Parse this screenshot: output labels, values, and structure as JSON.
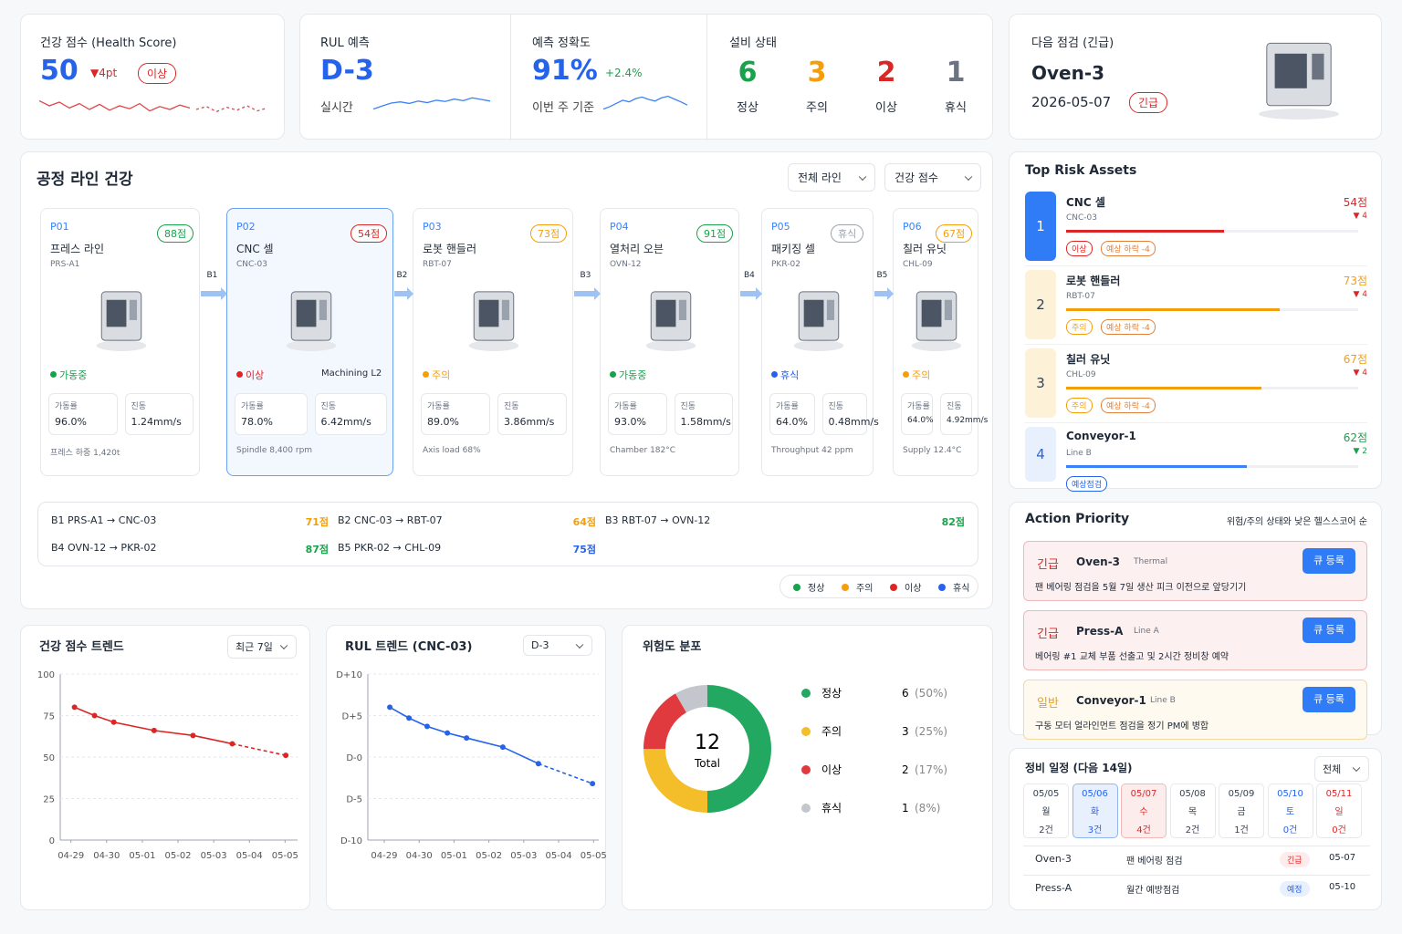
{
  "kpis": {
    "health": {
      "label": "건강 점수 (Health Score)",
      "value": 50,
      "delta": "▼4pt",
      "badge": "이상",
      "sparkline": [
        62,
        55,
        60,
        52,
        58,
        50,
        57,
        49,
        55,
        51,
        58,
        48,
        54,
        50,
        56,
        52
      ],
      "sparkline_forecast": [
        50,
        54,
        47,
        53,
        49,
        55,
        48,
        52
      ]
    },
    "rul": {
      "label": "RUL 예측",
      "value": "D-3",
      "sub": "실시간",
      "sparkline": [
        30,
        38,
        45,
        48,
        44,
        50,
        46,
        52,
        49,
        55,
        51,
        58,
        54,
        50
      ]
    },
    "accuracy": {
      "label": "예측 정확도",
      "value": "91%",
      "delta": "+2.4%",
      "sub": "이번 주 기준",
      "sparkline": [
        30,
        36,
        44,
        52,
        48,
        56,
        60,
        54,
        50,
        58,
        62,
        55,
        48,
        40
      ]
    },
    "status": {
      "label": "설비 상태",
      "items": [
        {
          "count": 6,
          "label": "정상",
          "color": "#16a34a"
        },
        {
          "count": 3,
          "label": "주의",
          "color": "#f59e0b"
        },
        {
          "count": 2,
          "label": "이상",
          "color": "#dc2626"
        },
        {
          "count": 1,
          "label": "휴식",
          "color": "#6b7280"
        }
      ]
    },
    "next": {
      "label": "다음 점검 (긴급)",
      "asset": "Oven-3",
      "date": "2026-05-07",
      "badge": "긴급"
    }
  },
  "process": {
    "title": "공정 라인 건강",
    "filters": [
      "전체 라인",
      "건강 점수"
    ],
    "stations": [
      {
        "id": "P01",
        "badge": "88점",
        "badge_color": "#16a34a",
        "name": "프레스 라인",
        "code": "PRS-A1",
        "status": "가동중",
        "status_color": "#16a34a",
        "metrics": [
          {
            "label": "가동률",
            "value": "96.0%"
          },
          {
            "label": "진동",
            "value": "1.24mm/s"
          }
        ],
        "note": "프레스 하중 1,420t"
      },
      {
        "id": "P02",
        "badge": "54점",
        "badge_color": "#dc2626",
        "name": "CNC 셀",
        "code": "CNC-03",
        "status": "이상",
        "status_color": "#dc2626",
        "extra": "Machining L2",
        "selected": true,
        "metrics": [
          {
            "label": "가동률",
            "value": "78.0%"
          },
          {
            "label": "진동",
            "value": "6.42mm/s"
          }
        ],
        "note": "Spindle 8,400 rpm"
      },
      {
        "id": "P03",
        "badge": "73점",
        "badge_color": "#f59e0b",
        "name": "로봇 핸들러",
        "code": "RBT-07",
        "status": "주의",
        "status_color": "#f59e0b",
        "metrics": [
          {
            "label": "가동률",
            "value": "89.0%"
          },
          {
            "label": "진동",
            "value": "3.86mm/s"
          }
        ],
        "note": "Axis load 68%"
      },
      {
        "id": "P04",
        "badge": "91점",
        "badge_color": "#16a34a",
        "name": "열처리 오븐",
        "code": "OVN-12",
        "status": "가동중",
        "status_color": "#16a34a",
        "metrics": [
          {
            "label": "가동률",
            "value": "93.0%"
          },
          {
            "label": "진동",
            "value": "1.58mm/s"
          }
        ],
        "note": "Chamber 182°C"
      },
      {
        "id": "P05",
        "badge": "휴식",
        "badge_color": "#9ca3af",
        "name": "패키징 셀",
        "code": "PKR-02",
        "status": "휴식",
        "status_color": "#2563eb",
        "metrics": [
          {
            "label": "가동률",
            "value": "64.0%"
          },
          {
            "label": "진동",
            "value": "0.48mm/s"
          }
        ],
        "note": "Throughput 42 ppm"
      },
      {
        "id": "P06",
        "badge": "67점",
        "badge_color": "#f59e0b",
        "name": "칠러 유닛",
        "code": "CHL-09",
        "status": "주의",
        "status_color": "#f59e0b",
        "metrics": [
          {
            "label": "가동률",
            "value": "64.0%"
          },
          {
            "label": "진동",
            "value": "4.92mm/s"
          }
        ],
        "note": "Supply 12.4°C"
      }
    ],
    "buffers": [
      "B1",
      "B2",
      "B3",
      "B4",
      "B5"
    ],
    "links": [
      {
        "label": "B1 PRS-A1 → CNC-03",
        "score": "71점",
        "color": "#f59e0b"
      },
      {
        "label": "B2 CNC-03 → RBT-07",
        "score": "64점",
        "color": "#f59e0b"
      },
      {
        "label": "B3 RBT-07 → OVN-12",
        "score": "82점",
        "color": "#16a34a"
      },
      {
        "label": "B4 OVN-12 → PKR-02",
        "score": "87점",
        "color": "#16a34a"
      },
      {
        "label": "B5 PKR-02 → CHL-09",
        "score": "75점",
        "color": "#2563eb"
      }
    ],
    "legend": [
      {
        "label": "정상",
        "color": "#16a34a"
      },
      {
        "label": "주의",
        "color": "#f59e0b"
      },
      {
        "label": "이상",
        "color": "#dc2626"
      },
      {
        "label": "휴식",
        "color": "#2563eb"
      }
    ]
  },
  "top_risk": {
    "title": "Top Risk Assets",
    "items": [
      {
        "rank": "1",
        "name": "CNC 셀",
        "code": "CNC-03",
        "score": 54,
        "score_label": "54점",
        "delta": "▼ 4",
        "color": "#dc2626",
        "tags": [
          "이상",
          "예상 하락 -4"
        ]
      },
      {
        "rank": "2",
        "name": "로봇 핸들러",
        "code": "RBT-07",
        "score": 73,
        "score_label": "73점",
        "delta": "▼ 4",
        "color": "#f59e0b",
        "tags": [
          "주의",
          "예상 하락 -4"
        ]
      },
      {
        "rank": "3",
        "name": "칠러 유닛",
        "code": "CHL-09",
        "score": 67,
        "score_label": "67점",
        "delta": "▼ 4",
        "color": "#f59e0b",
        "tags": [
          "주의",
          "예상 하락 -4"
        ]
      },
      {
        "rank": "4",
        "name": "Conveyor-1",
        "code": "Line B",
        "score": 62,
        "score_label": "62점",
        "delta": "▼ 2",
        "color": "#3b82f6",
        "tags": [
          "예상점검"
        ]
      }
    ]
  },
  "actions": {
    "title": "Action Priority",
    "subtitle": "위험/주의 상태와 낮은 헬스스코어 순",
    "items": [
      {
        "level": "긴급",
        "asset": "Oven-3",
        "tag": "Thermal",
        "text": "팬 베어링 점검을 5월 7일 생산 피크 이전으로 앞당기기",
        "button": "큐 등록",
        "color": "#dc2626"
      },
      {
        "level": "긴급",
        "asset": "Press-A",
        "tag": "Line A",
        "text": "베어링 #1 교체 부품 선출고 및 2시간 정비창 예약",
        "button": "큐 등록",
        "color": "#dc2626"
      },
      {
        "level": "일반",
        "asset": "Conveyor-1",
        "tag": "Line B",
        "text": "구동 모터 얼라인먼트 점검을 정기 PM에 병합",
        "button": "큐 등록",
        "color": "#f59e0b"
      }
    ]
  },
  "schedule": {
    "title": "정비 일정 (다음 14일)",
    "filter": "전체",
    "days": [
      {
        "date": "05/05",
        "dow": "월",
        "count": "2건"
      },
      {
        "date": "05/06",
        "dow": "화",
        "count": "3건",
        "selected": true
      },
      {
        "date": "05/07",
        "dow": "수",
        "count": "4건",
        "alert": true
      },
      {
        "date": "05/08",
        "dow": "목",
        "count": "2건"
      },
      {
        "date": "05/09",
        "dow": "금",
        "count": "1건"
      },
      {
        "date": "05/10",
        "dow": "토",
        "count": "0건",
        "color": "#2563eb"
      },
      {
        "date": "05/11",
        "dow": "일",
        "count": "0건",
        "color": "#dc2626"
      }
    ],
    "rows": [
      {
        "asset": "Oven-3",
        "task": "팬 베어링 점검",
        "badge": "긴급",
        "badge_color": "#dc2626",
        "date": "05-07"
      },
      {
        "asset": "Press-A",
        "task": "월간 예방점검",
        "badge": "예정",
        "badge_color": "#2563eb",
        "date": "05-10"
      }
    ]
  },
  "chart_data": [
    {
      "type": "line",
      "title": "건강 점수 트렌드",
      "filter": "최근 7일",
      "xlim": [
        -0.3,
        6.35
      ],
      "xticks": [
        {
          "value": 0,
          "label": "04-29"
        },
        {
          "value": 1,
          "label": "04-30"
        },
        {
          "value": 2,
          "label": "05-01"
        },
        {
          "value": 3,
          "label": "05-02"
        },
        {
          "value": 4,
          "label": "05-03"
        },
        {
          "value": 5,
          "label": "05-04"
        },
        {
          "value": 6,
          "label": "05-05"
        }
      ],
      "ylim": [
        0,
        100
      ],
      "yticks": [
        0,
        25,
        50,
        75,
        100
      ],
      "grid": true,
      "series": [
        {
          "color": "#dc2626",
          "x": [
            0.1,
            0.66,
            1.2,
            2.33,
            3.42,
            4.52
          ],
          "values": [
            80,
            75,
            71,
            66,
            63,
            58
          ]
        },
        {
          "color": "#dc2626",
          "dashed": true,
          "x": [
            4.52,
            6.02
          ],
          "values": [
            58,
            51
          ]
        }
      ]
    },
    {
      "type": "line",
      "title": "RUL 트렌드 (CNC-03)",
      "filter": "D-3",
      "xlim": [
        -0.47,
        6.15
      ],
      "xticks": [
        {
          "value": 0,
          "label": "04-29"
        },
        {
          "value": 1,
          "label": "04-30"
        },
        {
          "value": 2,
          "label": "05-01"
        },
        {
          "value": 3,
          "label": "05-02"
        },
        {
          "value": 4,
          "label": "05-03"
        },
        {
          "value": 5,
          "label": "05-04"
        },
        {
          "value": 6,
          "label": "05-05"
        }
      ],
      "ylim": [
        -10,
        10
      ],
      "yticks": [
        {
          "value": -10,
          "label": "D-10"
        },
        {
          "value": -5,
          "label": "D-5"
        },
        {
          "value": 0,
          "label": "D-0"
        },
        {
          "value": 5,
          "label": "D+5"
        },
        {
          "value": 10,
          "label": "D+10"
        }
      ],
      "grid": true,
      "series": [
        {
          "color": "#2563eb",
          "x": [
            0.16,
            0.71,
            1.23,
            1.81,
            2.36,
            3.4,
            4.42
          ],
          "values": [
            6,
            4.7,
            3.7,
            2.9,
            2.3,
            1.2,
            -0.8
          ]
        },
        {
          "color": "#2563eb",
          "dashed": true,
          "x": [
            4.42,
            5.97
          ],
          "values": [
            -0.8,
            -3.2
          ]
        }
      ]
    },
    {
      "type": "donut",
      "title": "위험도 분포",
      "categories": [
        "정상",
        "주의",
        "이상",
        "휴식"
      ],
      "values": [
        6,
        3,
        2,
        1
      ],
      "percent_labels": [
        "(50%)",
        "(25%)",
        "(17%)",
        "(8%)"
      ],
      "colors": [
        "#22a860",
        "#f4bd2a",
        "#e0393e",
        "#c3c6cc"
      ],
      "center_value": 12,
      "center_label": "Total"
    }
  ]
}
